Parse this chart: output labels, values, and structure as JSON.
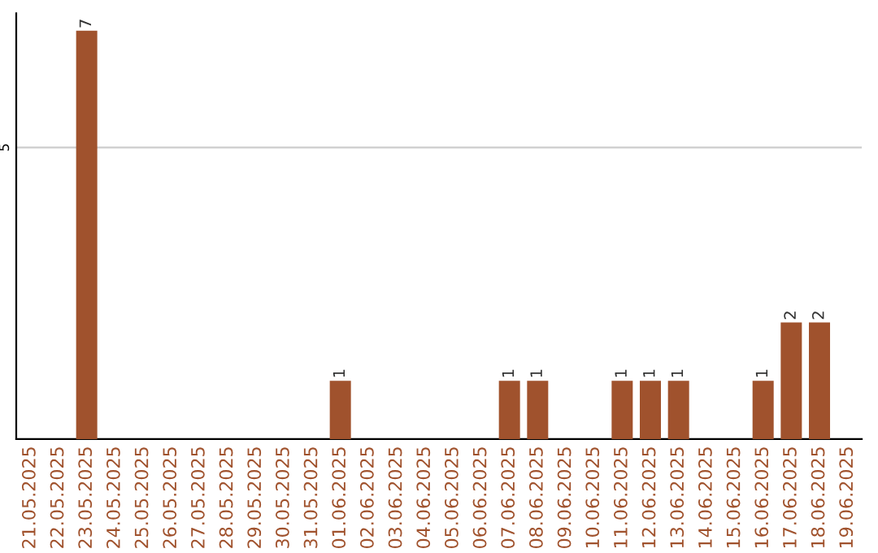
{
  "chart_data": {
    "type": "bar",
    "categories": [
      "21.05.2025",
      "22.05.2025",
      "23.05.2025",
      "24.05.2025",
      "25.05.2025",
      "26.05.2025",
      "27.05.2025",
      "28.05.2025",
      "29.05.2025",
      "30.05.2025",
      "31.05.2025",
      "01.06.2025",
      "02.06.2025",
      "03.06.2025",
      "04.06.2025",
      "05.06.2025",
      "06.06.2025",
      "07.06.2025",
      "08.06.2025",
      "09.06.2025",
      "10.06.2025",
      "11.06.2025",
      "12.06.2025",
      "13.06.2025",
      "14.06.2025",
      "15.06.2025",
      "16.06.2025",
      "17.06.2025",
      "18.06.2025",
      "19.06.2025"
    ],
    "values": [
      0,
      0,
      7,
      0,
      0,
      0,
      0,
      0,
      0,
      0,
      0,
      1,
      0,
      0,
      0,
      0,
      0,
      1,
      1,
      0,
      0,
      1,
      1,
      1,
      0,
      0,
      1,
      2,
      2,
      0
    ],
    "value_labels": [
      null,
      null,
      "7",
      null,
      null,
      null,
      null,
      null,
      null,
      null,
      null,
      "1",
      null,
      null,
      null,
      null,
      null,
      "1",
      "1",
      null,
      null,
      "1",
      "1",
      "1",
      null,
      null,
      "1",
      "2",
      "2",
      null
    ],
    "color": "#a0522d",
    "ylim": [
      0,
      7.3
    ],
    "yticks": [
      5
    ],
    "grid": "y"
  }
}
